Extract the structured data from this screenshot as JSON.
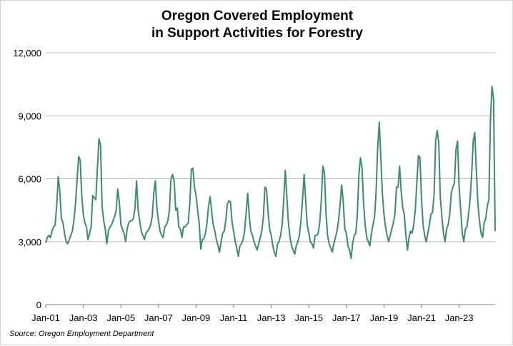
{
  "chart_data": {
    "type": "line",
    "title_line1": "Oregon Covered Employment",
    "title_line2": "in Support Activities for Forestry",
    "source": "Source: Oregon Employment Department",
    "xlabel": "",
    "ylabel": "",
    "ylim": [
      0,
      12000
    ],
    "yticks": [
      0,
      3000,
      6000,
      9000,
      12000
    ],
    "ytick_labels": [
      "0",
      "3,000",
      "6,000",
      "9,000",
      "12,000"
    ],
    "xtick_labels": [
      "Jan-01",
      "Jan-03",
      "Jan-05",
      "Jan-07",
      "Jan-09",
      "Jan-11",
      "Jan-13",
      "Jan-15",
      "Jan-17",
      "Jan-19",
      "Jan-21",
      "Jan-23"
    ],
    "xtick_month_index": [
      0,
      24,
      48,
      72,
      96,
      120,
      144,
      168,
      192,
      216,
      240,
      264
    ],
    "x_start": "Jan-01",
    "num_months": 288,
    "line_color": "#3a8a76",
    "grid": true,
    "series": [
      {
        "name": "Support Activities for Forestry employment",
        "annual_monthly_values": [
          [
            2950,
            3200,
            3300,
            3200,
            3500,
            3700,
            3800,
            4700,
            6100,
            5400,
            4100,
            3900
          ],
          [
            3400,
            3000,
            2900,
            3100,
            3300,
            3500,
            4000,
            4800,
            5900,
            7050,
            6900,
            5200
          ],
          [
            4300,
            3900,
            3700,
            3100,
            3400,
            3700,
            5200,
            5100,
            5000,
            6500,
            7900,
            7600
          ],
          [
            4700,
            4000,
            3600,
            2900,
            3500,
            3700,
            3800,
            4000,
            4200,
            4500,
            5500,
            4900
          ],
          [
            3800,
            3600,
            3400,
            3000,
            3600,
            3900,
            4000,
            4000,
            4100,
            4600,
            5900,
            4500
          ],
          [
            4000,
            3500,
            3300,
            3100,
            3400,
            3500,
            3600,
            3800,
            4200,
            5300,
            5900,
            4600
          ],
          [
            4000,
            3500,
            3300,
            3200,
            3700,
            3800,
            4000,
            4500,
            6000,
            6200,
            5900,
            4500
          ],
          [
            4600,
            3700,
            3600,
            3200,
            3700,
            3700,
            3800,
            3900,
            4800,
            6450,
            6500,
            5600
          ],
          [
            5200,
            4500,
            3900,
            2650,
            3100,
            3150,
            3400,
            3900,
            4700,
            5150,
            4400,
            3800
          ],
          [
            3500,
            3100,
            2800,
            2500,
            3000,
            3400,
            3500,
            4000,
            4800,
            4950,
            4900,
            3900
          ],
          [
            3500,
            3000,
            2700,
            2300,
            2800,
            2900,
            3100,
            3500,
            4400,
            5300,
            4200,
            3500
          ],
          [
            3300,
            3000,
            2800,
            2600,
            2900,
            3200,
            3500,
            4200,
            5600,
            5500,
            4400,
            3600
          ],
          [
            3300,
            2800,
            2500,
            2300,
            2900,
            3000,
            3300,
            3800,
            5000,
            6400,
            5100,
            3900
          ],
          [
            3200,
            2800,
            2600,
            2400,
            2800,
            3000,
            3300,
            4000,
            5000,
            6200,
            5000,
            3800
          ],
          [
            3400,
            3000,
            2900,
            2700,
            3300,
            3300,
            3400,
            3900,
            5000,
            6600,
            6300,
            4300
          ],
          [
            3300,
            2900,
            2700,
            2500,
            2900,
            3200,
            3500,
            4000,
            4800,
            5700,
            4900,
            3600
          ],
          [
            3400,
            2800,
            2600,
            2200,
            2900,
            3300,
            3400,
            4300,
            6200,
            7000,
            6500,
            4800
          ],
          [
            3800,
            3200,
            3000,
            2800,
            3400,
            3800,
            4200,
            5400,
            7500,
            8700,
            7000,
            5300
          ],
          [
            4300,
            3700,
            3300,
            3000,
            3300,
            3600,
            3900,
            4300,
            5600,
            5600,
            6600,
            5400
          ],
          [
            4600,
            4300,
            3300,
            2600,
            3200,
            3500,
            3400,
            3800,
            4500,
            5800,
            7100,
            7000
          ],
          [
            5000,
            3800,
            3300,
            3000,
            3400,
            3800,
            4300,
            4400,
            5200,
            7800,
            8300,
            7700
          ],
          [
            5100,
            4200,
            3400,
            3000,
            3600,
            3800,
            4300,
            5300,
            5600,
            5800,
            7400,
            7800
          ],
          [
            5600,
            4500,
            3400,
            3000,
            3600,
            3700,
            4300,
            5000,
            6200,
            7800,
            8200,
            6400
          ],
          [
            4800,
            4000,
            3400,
            3200,
            3900,
            4100,
            4700,
            5000,
            8800,
            10400,
            9800,
            3500
          ]
        ]
      }
    ]
  }
}
